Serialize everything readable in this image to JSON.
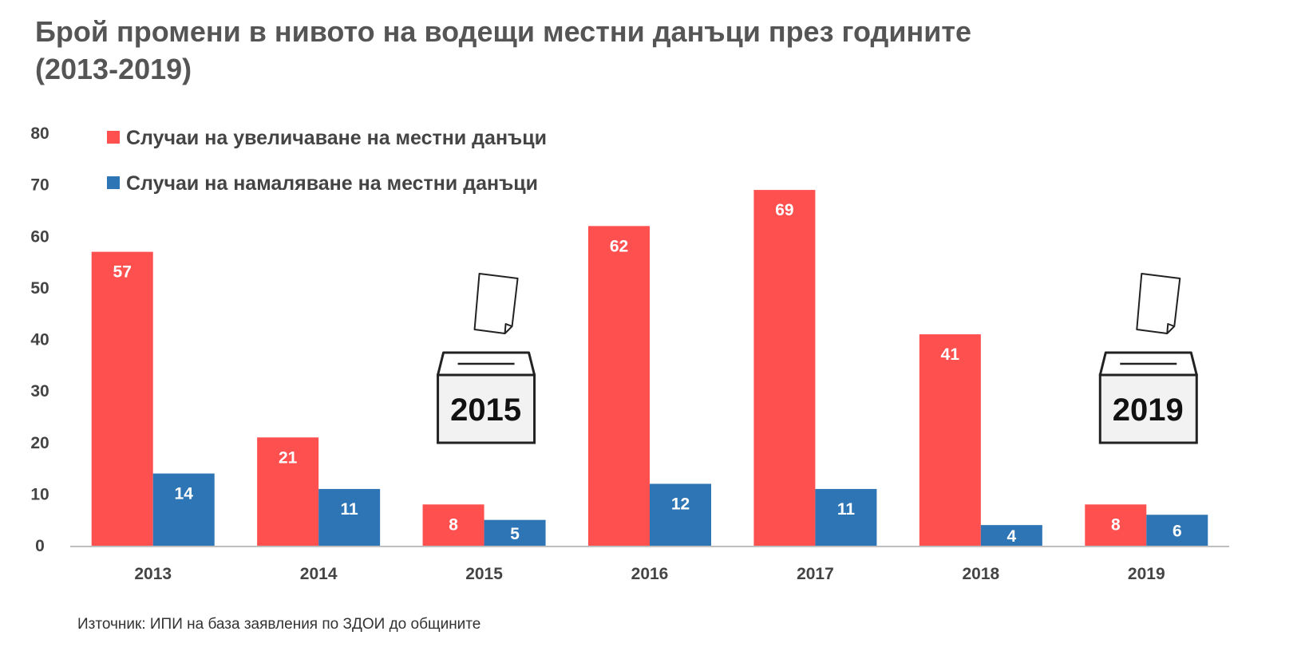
{
  "title_line1": "Брой промени в нивото на  водещи местни данъци през годините",
  "title_line2": "(2013-2019)",
  "source": "Източник: ИПИ на база заявления по ЗДОИ до общините",
  "chart_data": {
    "type": "bar",
    "categories": [
      "2013",
      "2014",
      "2015",
      "2016",
      "2017",
      "2018",
      "2019"
    ],
    "series": [
      {
        "name": "Случаи на увеличаване на местни данъци",
        "values": [
          57,
          21,
          8,
          62,
          69,
          41,
          8
        ],
        "color": "#ff5050"
      },
      {
        "name": "Случаи на намаляване на местни данъци",
        "values": [
          14,
          11,
          5,
          12,
          11,
          4,
          6
        ],
        "color": "#2e75b6"
      }
    ],
    "ylim": [
      0,
      80
    ],
    "yticks": [
      0,
      10,
      20,
      30,
      40,
      50,
      60,
      70,
      80
    ],
    "legend": "top-left",
    "grid": false,
    "annotations": [
      {
        "icon": "ballot-box-icon",
        "text": "2015",
        "category": "2015"
      },
      {
        "icon": "ballot-box-icon",
        "text": "2019",
        "category": "2019"
      }
    ]
  }
}
